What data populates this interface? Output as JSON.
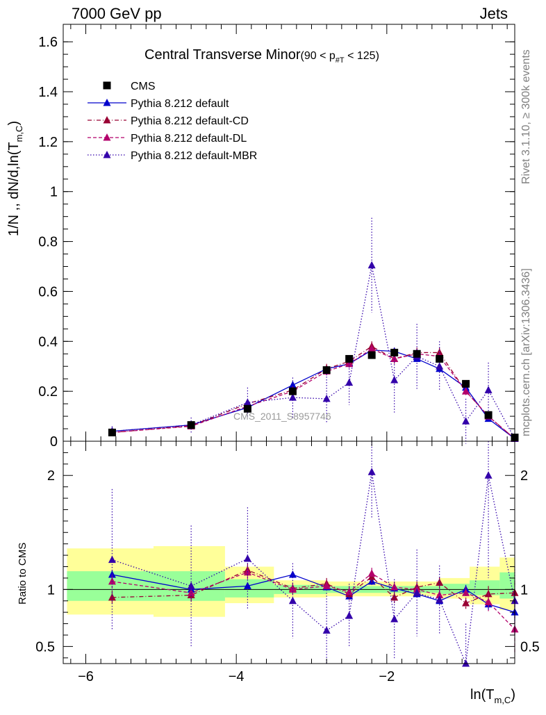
{
  "header": {
    "left": "7000 GeV pp",
    "right": "Jets",
    "side_top": "Rivet 3.1.10, ≥ 300k events",
    "side_bottom": "mcplots.cern.ch [arXiv:1306.3436]"
  },
  "chart_data": [
    {
      "type": "line",
      "panel": "main",
      "title": "Central Transverse Minor",
      "title_suffix": "(90 < p",
      "title_sub": "#T",
      "title_end": " < 125)",
      "ylabel": "1/N ,, dN/d,ln(T",
      "ylabel_sub": "m,C",
      "ylabel_end": ")",
      "watermark": "CMS_2011_S8957746",
      "xlim": [
        -6.3,
        -0.3
      ],
      "ylim": [
        0,
        1.67
      ],
      "yticks": [
        0,
        0.2,
        0.4,
        0.6,
        0.8,
        1,
        1.2,
        1.4,
        1.6
      ],
      "ytick_labels": [
        "0",
        "0.2",
        "0.4",
        "0.6",
        "0.8",
        "1",
        "1.2",
        "1.4",
        "1.6"
      ],
      "x": [
        -5.65,
        -4.6,
        -3.85,
        -3.25,
        -2.8,
        -2.5,
        -2.2,
        -1.9,
        -1.6,
        -1.3,
        -0.95,
        -0.65,
        -0.3
      ],
      "series": [
        {
          "name": "CMS",
          "color": "#000000",
          "marker": "square",
          "dash": "none",
          "values": [
            0.035,
            0.065,
            0.13,
            0.2,
            0.285,
            0.33,
            0.345,
            0.355,
            0.35,
            0.33,
            0.23,
            0.105,
            0.015
          ]
        },
        {
          "name": "Pythia 8.212 default",
          "color": "#0000cc",
          "marker": "triangle",
          "dash": "solid",
          "values": [
            0.04,
            0.065,
            0.135,
            0.225,
            0.29,
            0.31,
            0.365,
            0.36,
            0.33,
            0.29,
            0.215,
            0.09,
            0.01
          ],
          "errors": [
            0.005,
            0.005,
            0.006,
            0.008,
            0.01,
            0.012,
            0.012,
            0.012,
            0.012,
            0.012,
            0.01,
            0.01,
            0.004
          ]
        },
        {
          "name": "Pythia 8.212 default-CD",
          "color": "#990033",
          "marker": "triangle",
          "dash": "dashdot",
          "values": [
            0.035,
            0.062,
            0.15,
            0.205,
            0.29,
            0.32,
            0.38,
            0.33,
            0.355,
            0.355,
            0.2,
            0.1,
            0.01
          ],
          "errors": [
            0.008,
            0.01,
            0.015,
            0.015,
            0.02,
            0.02,
            0.02,
            0.02,
            0.02,
            0.02,
            0.015,
            0.012,
            0.004
          ]
        },
        {
          "name": "Pythia 8.212 default-DL",
          "color": "#b3006b",
          "marker": "triangle",
          "dash": "dashed",
          "values": [
            0.035,
            0.06,
            0.14,
            0.2,
            0.28,
            0.31,
            0.37,
            0.33,
            0.35,
            0.34,
            0.2,
            0.1,
            0.01
          ],
          "errors": [
            0.008,
            0.01,
            0.015,
            0.015,
            0.02,
            0.02,
            0.02,
            0.02,
            0.02,
            0.02,
            0.015,
            0.012,
            0.004
          ]
        },
        {
          "name": "Pythia 8.212 default-MBR",
          "color": "#3300aa",
          "marker": "triangle",
          "dash": "dotted",
          "values": [
            0.04,
            0.065,
            0.155,
            0.175,
            0.17,
            0.235,
            0.705,
            0.245,
            0.34,
            0.3,
            0.08,
            0.205,
            0.01
          ],
          "errors": [
            0.02,
            0.03,
            0.06,
            0.08,
            0.1,
            0.09,
            0.19,
            0.13,
            0.13,
            0.1,
            0.09,
            0.11,
            0.005
          ]
        }
      ]
    },
    {
      "type": "line",
      "panel": "ratio",
      "ylabel": "Ratio to CMS",
      "xlabel": "ln(T",
      "xlabel_sub": "m,C",
      "xlabel_end": ")",
      "xlim": [
        -6.3,
        -0.3
      ],
      "ylim": [
        0.35,
        2.3
      ],
      "xticks": [
        -6,
        -4,
        -2
      ],
      "xtick_labels": [
        "−6",
        "−4",
        "−2"
      ],
      "yticks": [
        0.5,
        1,
        2
      ],
      "ytick_labels": [
        "0.5",
        "1",
        "2"
      ],
      "bands": [
        {
          "x0": -6.25,
          "x1": -5.1,
          "inner": [
            0.9,
            1.16
          ],
          "outer": [
            0.78,
            1.36
          ]
        },
        {
          "x0": -5.1,
          "x1": -4.15,
          "inner": [
            0.9,
            1.16
          ],
          "outer": [
            0.76,
            1.38
          ]
        },
        {
          "x0": -4.15,
          "x1": -3.5,
          "inner": [
            0.93,
            1.09
          ],
          "outer": [
            0.88,
            1.2
          ]
        },
        {
          "x0": -3.5,
          "x1": -2.8,
          "inner": [
            0.96,
            1.04
          ],
          "outer": [
            0.93,
            1.08
          ]
        },
        {
          "x0": -2.8,
          "x1": -1.3,
          "inner": [
            0.97,
            1.03
          ],
          "outer": [
            0.94,
            1.07
          ]
        },
        {
          "x0": -1.3,
          "x1": -0.9,
          "inner": [
            0.96,
            1.05
          ],
          "outer": [
            0.92,
            1.1
          ]
        },
        {
          "x0": -0.9,
          "x1": -0.5,
          "inner": [
            0.95,
            1.08
          ],
          "outer": [
            0.87,
            1.2
          ]
        },
        {
          "x0": -0.5,
          "x1": -0.3,
          "inner": [
            0.92,
            1.15
          ],
          "outer": [
            0.82,
            1.28
          ]
        }
      ],
      "series": [
        {
          "name": "Pythia 8.212 default",
          "color": "#0000cc",
          "dash": "solid",
          "values": [
            1.13,
            1.0,
            1.03,
            1.13,
            1.02,
            0.94,
            1.07,
            1.01,
            0.96,
            0.9,
            1.0,
            0.87,
            0.8
          ],
          "errors": [
            0.04,
            0.03,
            0.03,
            0.03,
            0.03,
            0.03,
            0.03,
            0.03,
            0.03,
            0.03,
            0.04,
            0.05,
            0.08
          ]
        },
        {
          "name": "Pythia 8.212 default-CD",
          "color": "#990033",
          "dash": "dashdot",
          "values": [
            0.93,
            0.95,
            1.17,
            1.01,
            1.05,
            0.96,
            1.11,
            0.93,
            1.02,
            1.06,
            0.88,
            0.96,
            0.97
          ],
          "errors": [
            0.06,
            0.06,
            0.06,
            0.05,
            0.05,
            0.05,
            0.05,
            0.05,
            0.05,
            0.05,
            0.05,
            0.07,
            0.1
          ]
        },
        {
          "name": "Pythia 8.212 default-DL",
          "color": "#b3006b",
          "dash": "dashed",
          "values": [
            1.07,
            0.97,
            1.15,
            1.0,
            1.03,
            0.98,
            1.14,
            1.02,
            1.0,
            0.95,
            0.97,
            0.89,
            0.65
          ],
          "errors": [
            0.06,
            0.06,
            0.06,
            0.05,
            0.05,
            0.05,
            0.05,
            0.05,
            0.05,
            0.05,
            0.05,
            0.08,
            0.22
          ]
        },
        {
          "name": "Pythia 8.212 default-MBR",
          "color": "#3300aa",
          "dash": "dotted",
          "values": [
            1.26,
            1.03,
            1.27,
            0.9,
            0.64,
            0.77,
            2.03,
            0.74,
            0.97,
            0.91,
            0.35,
            2.0,
            0.9
          ],
          "errors": [
            0.62,
            0.53,
            0.45,
            0.33,
            0.33,
            0.28,
            0.4,
            0.35,
            0.38,
            0.3,
            0.35,
            0.9,
            0.3
          ]
        }
      ]
    }
  ]
}
